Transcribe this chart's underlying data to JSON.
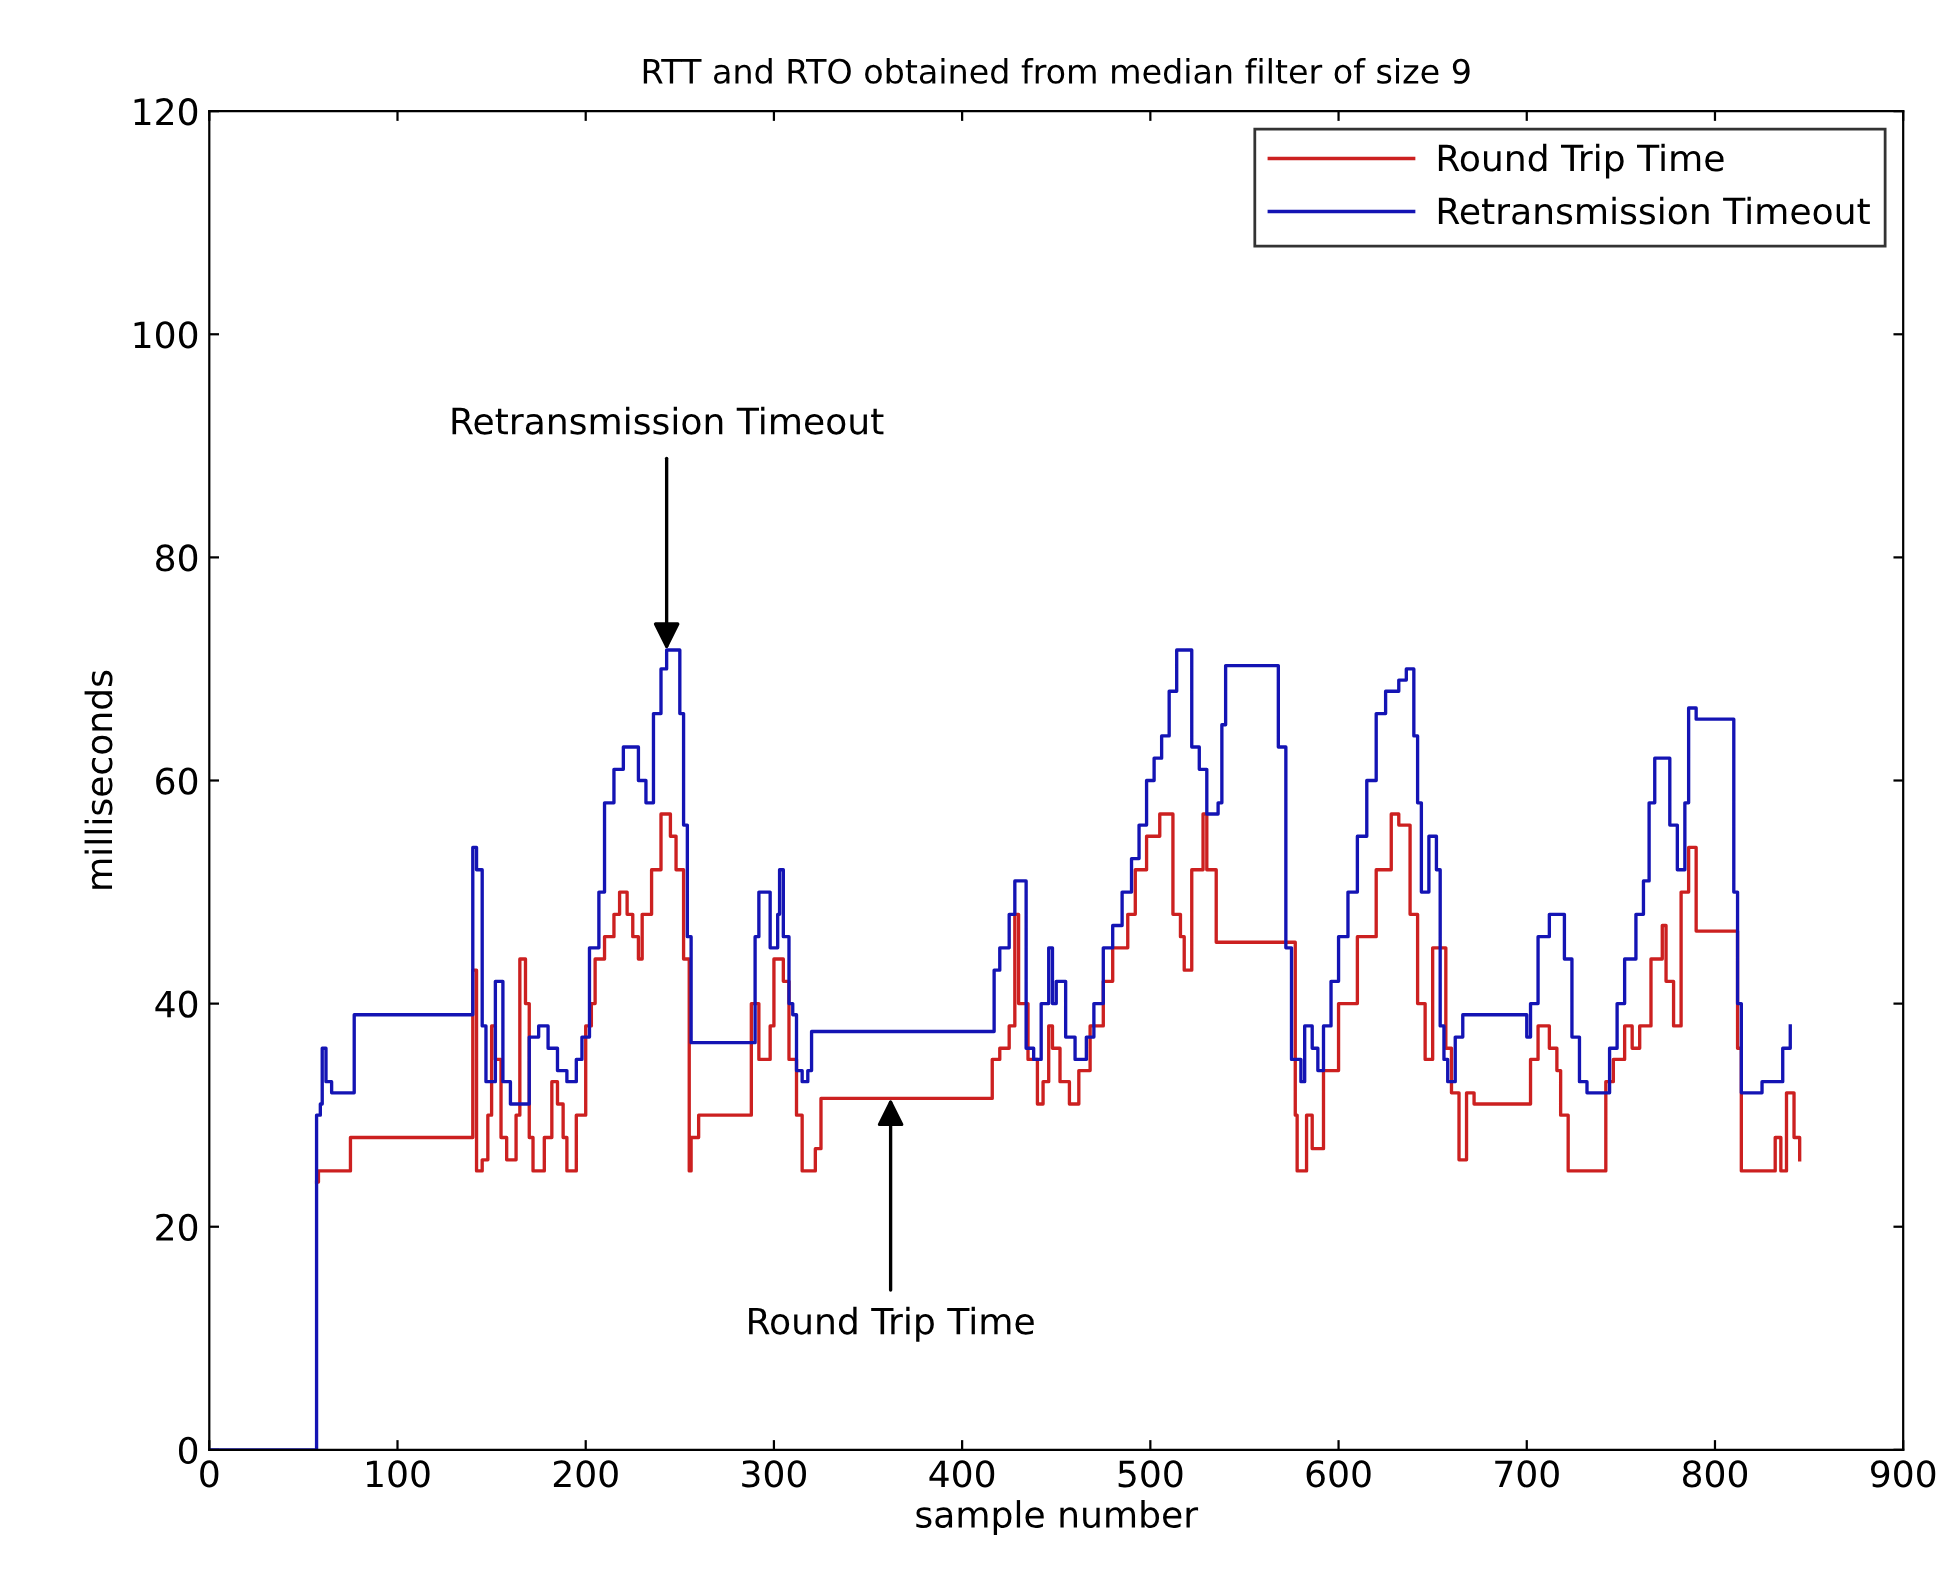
{
  "chart_data": {
    "type": "step",
    "title": "RTT and RTO obtained from median filter of size 9",
    "xlabel": "sample number",
    "ylabel": "milliseconds",
    "xlim": [
      0,
      900
    ],
    "xticks": [
      0,
      100,
      200,
      300,
      400,
      500,
      600,
      700,
      800,
      900
    ],
    "ylim": [
      0,
      120
    ],
    "yticks": [
      0,
      20,
      40,
      60,
      80,
      100,
      120
    ],
    "grid": false,
    "legend": "top right",
    "marker": "none",
    "line_style": "solid",
    "annotations": [
      {
        "text": "Retransmission Timeout",
        "x": 243,
        "y": 71.7
      },
      {
        "text": "Round Trip Time",
        "x": 362,
        "y": 31.5
      }
    ],
    "series": [
      {
        "name": "Round Trip Time",
        "color": "#cc2020",
        "x": [
          57,
          58,
          75,
          75,
          140,
          140,
          142,
          145,
          148,
          150,
          152,
          155,
          158,
          160,
          163,
          165,
          168,
          170,
          172,
          177,
          178,
          182,
          185,
          188,
          190,
          195,
          200,
          203,
          205,
          210,
          215,
          218,
          222,
          225,
          228,
          230,
          235,
          240,
          245,
          248,
          252,
          255,
          256,
          260,
          287,
          288,
          292,
          295,
          298,
          300,
          305,
          308,
          312,
          315,
          320,
          322,
          325,
          415,
          416,
          420,
          425,
          428,
          430,
          435,
          440,
          443,
          446,
          448,
          452,
          457,
          462,
          468,
          475,
          480,
          488,
          492,
          498,
          505,
          510,
          512,
          516,
          518,
          522,
          528,
          530,
          535,
          575,
          577,
          578,
          582,
          583,
          586,
          592,
          600,
          610,
          620,
          628,
          632,
          638,
          642,
          646,
          650,
          650,
          655,
          657,
          660,
          664,
          668,
          672,
          700,
          702,
          706,
          712,
          716,
          718,
          722,
          737,
          742,
          746,
          752,
          756,
          760,
          766,
          772,
          774,
          778,
          782,
          786,
          790,
          810,
          812,
          814,
          829,
          832,
          835,
          838,
          842,
          845
        ],
        "values": [
          24,
          25,
          25,
          28,
          28,
          43,
          25,
          26,
          30,
          38,
          35,
          28,
          26,
          26,
          30,
          44,
          40,
          28,
          25,
          25,
          28,
          33,
          31,
          28,
          25,
          30,
          38,
          40,
          44,
          46,
          48,
          50,
          48,
          46,
          44,
          48,
          52,
          57,
          55,
          52,
          44,
          25,
          28,
          30,
          30,
          40,
          35,
          35,
          38,
          44,
          42,
          35,
          30,
          25,
          25,
          27,
          31.5,
          31.5,
          35,
          36,
          38,
          48,
          40,
          35,
          31,
          33,
          38,
          36,
          33,
          31,
          34,
          38,
          42,
          45,
          48,
          52,
          55,
          57,
          57,
          48,
          46,
          43,
          52,
          57,
          52,
          45.5,
          45.5,
          30,
          25,
          25,
          30,
          27,
          34,
          40,
          46,
          52,
          57,
          56,
          48,
          40,
          35,
          35,
          45,
          45,
          36,
          32,
          26,
          32,
          31,
          31,
          35,
          38,
          36,
          34,
          30,
          25,
          25,
          33,
          35,
          38,
          36,
          38,
          44,
          47,
          42,
          38,
          50,
          54,
          46.5,
          46.5,
          36,
          25,
          25,
          28,
          25,
          32,
          28,
          26
        ]
      },
      {
        "name": "Retransmission Timeout",
        "color": "#1414b4",
        "x": [
          0,
          57,
          57,
          59,
          60,
          62,
          65,
          75,
          77,
          140,
          140,
          142,
          145,
          147,
          150,
          152,
          156,
          160,
          168,
          170,
          175,
          180,
          185,
          190,
          195,
          198,
          202,
          207,
          210,
          215,
          220,
          225,
          228,
          232,
          236,
          240,
          243,
          248,
          250,
          252,
          254,
          256,
          287,
          290,
          292,
          296,
          298,
          302,
          303,
          305,
          308,
          310,
          312,
          315,
          318,
          320,
          415,
          417,
          420,
          425,
          428,
          432,
          434,
          438,
          442,
          446,
          448,
          450,
          455,
          460,
          462,
          466,
          470,
          475,
          480,
          485,
          490,
          494,
          498,
          502,
          506,
          510,
          514,
          520,
          522,
          526,
          530,
          534,
          536,
          538,
          540,
          566,
          568,
          572,
          575,
          580,
          582,
          586,
          589,
          592,
          596,
          600,
          605,
          610,
          615,
          620,
          625,
          632,
          636,
          640,
          642,
          644,
          648,
          652,
          654,
          656,
          658,
          662,
          666,
          698,
          700,
          702,
          706,
          712,
          718,
          720,
          724,
          728,
          732,
          740,
          744,
          748,
          752,
          758,
          762,
          765,
          768,
          772,
          776,
          780,
          784,
          786,
          790,
          808,
          810,
          812,
          814,
          820,
          825,
          832,
          836,
          840
        ],
        "values": [
          0,
          0,
          30,
          31,
          36,
          33,
          32,
          32,
          39,
          39,
          54,
          52,
          38,
          33,
          33,
          42,
          33,
          31,
          31,
          37,
          38,
          36,
          34,
          33,
          35,
          37,
          45,
          50,
          58,
          61,
          63,
          63,
          60,
          58,
          66,
          70,
          71.7,
          71.7,
          66,
          56,
          46,
          36.5,
          36.5,
          46,
          50,
          50,
          45,
          48,
          52,
          46,
          40,
          39,
          34,
          33,
          34,
          37.5,
          37.5,
          43,
          45,
          48,
          51,
          51,
          36,
          35,
          40,
          45,
          40,
          42,
          37,
          35,
          35,
          37,
          40,
          45,
          47,
          50,
          53,
          56,
          60,
          62,
          64,
          68,
          71.7,
          71.7,
          63,
          61,
          57,
          57,
          58,
          65,
          70.3,
          70.3,
          63,
          45,
          35,
          33,
          38,
          36,
          34,
          38,
          42,
          46,
          50,
          55,
          60,
          66,
          68,
          69,
          70,
          64,
          58,
          50,
          55,
          52,
          38,
          35,
          33,
          37,
          39,
          39,
          37,
          40,
          46,
          48,
          48,
          44,
          37,
          33,
          32,
          32,
          36,
          40,
          44,
          48,
          51,
          58,
          62,
          62,
          56,
          52,
          58,
          66.5,
          65.5,
          65.5,
          50,
          40,
          32,
          32,
          33,
          33,
          36,
          38
        ]
      }
    ]
  }
}
